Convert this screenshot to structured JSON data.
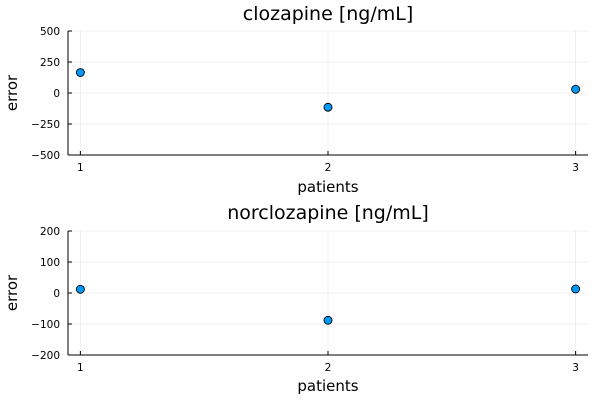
{
  "chart_data": [
    {
      "type": "scatter",
      "title": "clozapine [ng/mL]",
      "xlabel": "patients",
      "ylabel": "error",
      "xlim": [
        0.95,
        3.05
      ],
      "ylim": [
        -500,
        500
      ],
      "x_ticks": [
        1,
        2,
        3
      ],
      "y_ticks": [
        -500,
        -250,
        0,
        250,
        500
      ],
      "y_tick_labels": [
        "−500",
        "−250",
        "0",
        "250",
        "500"
      ],
      "grid": true,
      "series": [
        {
          "x": [
            1,
            2,
            3
          ],
          "y": [
            165,
            -115,
            30
          ],
          "color": "#009AFA"
        }
      ]
    },
    {
      "type": "scatter",
      "title": "norclozapine [ng/mL]",
      "xlabel": "patients",
      "ylabel": "error",
      "xlim": [
        0.95,
        3.05
      ],
      "ylim": [
        -200,
        200
      ],
      "x_ticks": [
        1,
        2,
        3
      ],
      "y_ticks": [
        -200,
        -100,
        0,
        100,
        200
      ],
      "y_tick_labels": [
        "−200",
        "−100",
        "0",
        "100",
        "200"
      ],
      "grid": true,
      "series": [
        {
          "x": [
            1,
            2,
            3
          ],
          "y": [
            12,
            -88,
            13
          ],
          "color": "#009AFA"
        }
      ]
    }
  ]
}
